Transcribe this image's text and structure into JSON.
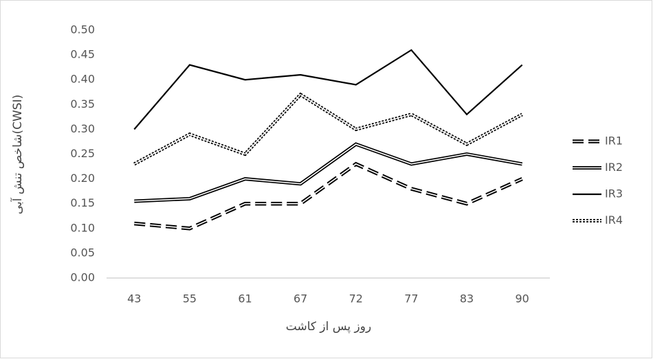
{
  "chart_data": {
    "type": "line",
    "y_label": "شاخص تنش آبی(CWSI)",
    "x_label": "روز پس از کاشت",
    "categories": [
      "43",
      "55",
      "61",
      "67",
      "72",
      "77",
      "83",
      "90"
    ],
    "series": [
      {
        "name": "IR1",
        "color": "#000000",
        "style": "double-dashed",
        "values": [
          0.11,
          0.1,
          0.15,
          0.15,
          0.23,
          0.18,
          0.15,
          0.2
        ]
      },
      {
        "name": "IR2",
        "color": "#000000",
        "style": "double-solid",
        "values": [
          0.155,
          0.16,
          0.2,
          0.19,
          0.27,
          0.23,
          0.25,
          0.23
        ]
      },
      {
        "name": "IR3",
        "color": "#000000",
        "style": "solid",
        "values": [
          0.3,
          0.43,
          0.4,
          0.41,
          0.39,
          0.46,
          0.33,
          0.43
        ]
      },
      {
        "name": "IR4",
        "color": "#000000",
        "style": "double-dotted",
        "values": [
          0.23,
          0.29,
          0.25,
          0.37,
          0.3,
          0.33,
          0.27,
          0.33
        ]
      }
    ],
    "ylim": [
      0,
      0.5
    ],
    "yticks": [
      {
        "value": 0,
        "label": "0.00"
      },
      0.05,
      {
        "value": 0.1,
        "label": "0.10"
      },
      0.15,
      {
        "value": 0.2,
        "label": "0.20"
      },
      0.25,
      {
        "value": 0.3,
        "label": "0.30"
      },
      0.35,
      {
        "value": 0.4,
        "label": "0.40"
      },
      0.45,
      {
        "value": 0.5,
        "label": "0.50"
      }
    ],
    "grid": false,
    "legend": "right"
  }
}
